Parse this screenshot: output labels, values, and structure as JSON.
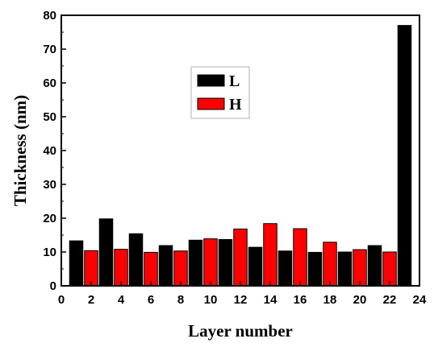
{
  "chart_data": {
    "type": "bar",
    "xlabel": "Layer number",
    "ylabel": "Thickness (nm)",
    "xlim": [
      0,
      24
    ],
    "ylim": [
      0,
      80
    ],
    "x_ticks": [
      0,
      2,
      4,
      6,
      8,
      10,
      12,
      14,
      16,
      18,
      20,
      22,
      24
    ],
    "y_ticks": [
      0,
      10,
      20,
      30,
      40,
      50,
      60,
      70,
      80
    ],
    "grid": false,
    "legend_position": "upper-left-center",
    "series": [
      {
        "name": "L",
        "color": "#000000",
        "x": [
          1,
          3,
          5,
          7,
          9,
          11,
          13,
          15,
          17,
          19,
          21,
          23
        ],
        "values": [
          13.3,
          19.8,
          15.4,
          11.9,
          13.5,
          13.7,
          11.4,
          10.3,
          9.9,
          10.0,
          11.9,
          77.0
        ]
      },
      {
        "name": "H",
        "color": "#ff0000",
        "x": [
          2,
          4,
          6,
          8,
          10,
          12,
          14,
          16,
          18,
          20,
          22
        ],
        "values": [
          10.4,
          10.8,
          9.9,
          10.3,
          13.9,
          16.8,
          18.4,
          16.9,
          12.9,
          10.7,
          10.0
        ]
      }
    ]
  }
}
